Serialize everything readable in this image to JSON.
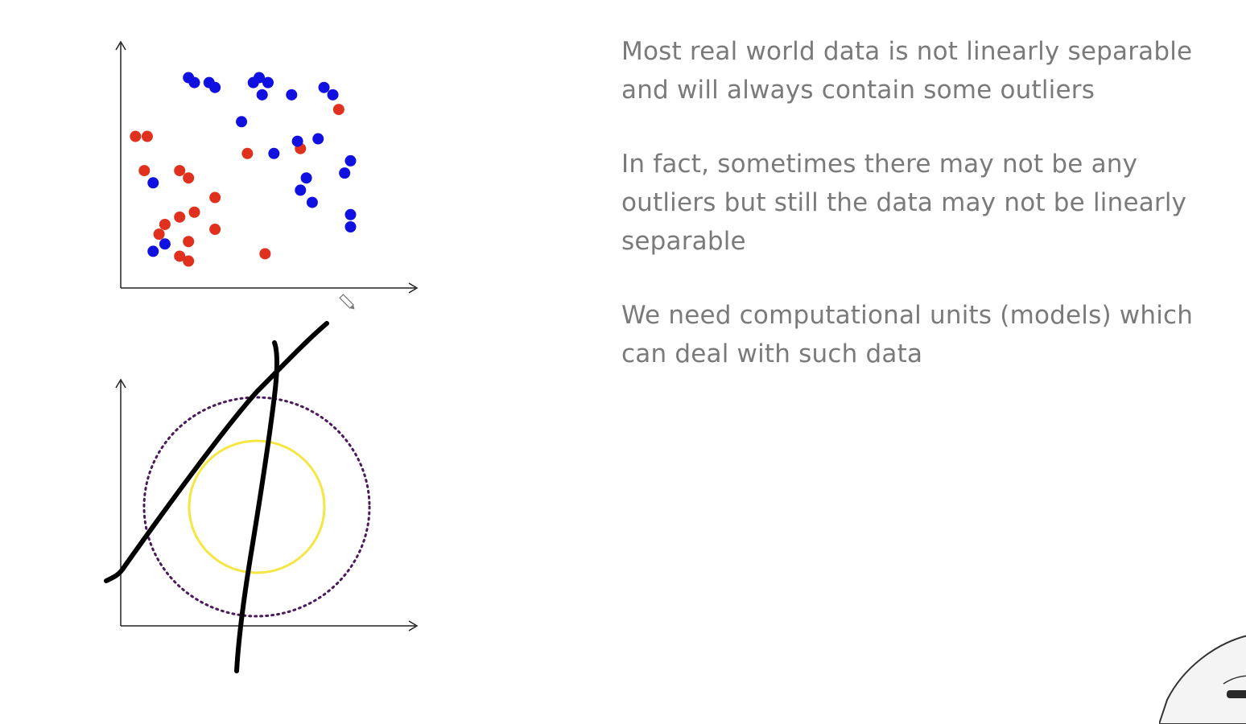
{
  "slide": {
    "bullets": [
      {
        "lines": [
          "Most real world data is not linearly separable",
          "and will always contain some outliers"
        ]
      },
      {
        "lines": [
          "In fact, sometimes there may not be any",
          "outliers but still the data may not be linearly",
          "separable"
        ]
      },
      {
        "lines": [
          "We need computational units (models) which",
          "can deal with such data"
        ]
      }
    ]
  },
  "colors": {
    "red_points": "#e0301e",
    "blue_points": "#1010e0",
    "inner_circle": "#f5e642",
    "outer_circle": "#4a1a5c",
    "ink": "#000000",
    "text": "#7a7a7a"
  },
  "scatter": {
    "type": "scatter",
    "series": [
      {
        "color": "red",
        "points": [
          [
            0.05,
            0.62
          ],
          [
            0.09,
            0.62
          ],
          [
            0.08,
            0.48
          ],
          [
            0.2,
            0.48
          ],
          [
            0.23,
            0.45
          ],
          [
            0.32,
            0.37
          ],
          [
            0.25,
            0.31
          ],
          [
            0.2,
            0.29
          ],
          [
            0.15,
            0.26
          ],
          [
            0.13,
            0.22
          ],
          [
            0.23,
            0.19
          ],
          [
            0.32,
            0.24
          ],
          [
            0.2,
            0.13
          ],
          [
            0.23,
            0.11
          ],
          [
            0.49,
            0.14
          ],
          [
            0.43,
            0.55
          ],
          [
            0.61,
            0.57
          ],
          [
            0.74,
            0.73
          ]
        ]
      },
      {
        "color": "blue",
        "points": [
          [
            0.23,
            0.86
          ],
          [
            0.25,
            0.84
          ],
          [
            0.3,
            0.84
          ],
          [
            0.32,
            0.82
          ],
          [
            0.45,
            0.84
          ],
          [
            0.47,
            0.86
          ],
          [
            0.5,
            0.84
          ],
          [
            0.48,
            0.79
          ],
          [
            0.58,
            0.79
          ],
          [
            0.69,
            0.82
          ],
          [
            0.72,
            0.79
          ],
          [
            0.41,
            0.68
          ],
          [
            0.52,
            0.55
          ],
          [
            0.6,
            0.6
          ],
          [
            0.67,
            0.61
          ],
          [
            0.78,
            0.52
          ],
          [
            0.76,
            0.47
          ],
          [
            0.63,
            0.45
          ],
          [
            0.61,
            0.4
          ],
          [
            0.65,
            0.35
          ],
          [
            0.78,
            0.3
          ],
          [
            0.78,
            0.25
          ],
          [
            0.11,
            0.43
          ],
          [
            0.15,
            0.18
          ],
          [
            0.11,
            0.15
          ]
        ]
      }
    ]
  },
  "circles_diagram": {
    "inner_ring_color": "yellow",
    "outer_ring_color": "purple",
    "ink_lines": 2
  },
  "icons": {
    "pen": "pen-cursor-icon",
    "presenter": "presenter-figure"
  }
}
